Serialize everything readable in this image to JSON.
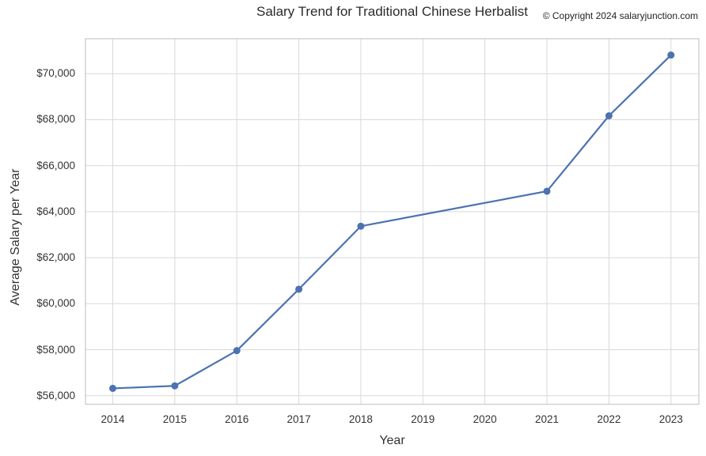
{
  "header": {
    "title": "Salary Trend for Traditional Chinese Herbalist",
    "copyright": "© Copyright 2024 salaryjunction.com"
  },
  "chart_data": {
    "type": "line",
    "title": "Salary Trend for Traditional Chinese Herbalist",
    "xlabel": "Year",
    "ylabel": "Average Salary per Year",
    "x": [
      2014,
      2015,
      2016,
      2017,
      2018,
      2021,
      2022,
      2023
    ],
    "y": [
      56320,
      56430,
      57960,
      60630,
      63370,
      64890,
      68170,
      70810
    ],
    "note": "No data markers at 2019 and 2020; the line runs straight from the 2018 point to the 2021 point.",
    "x_ticks": [
      "2014",
      "2015",
      "2016",
      "2017",
      "2018",
      "2019",
      "2020",
      "2021",
      "2022",
      "2023"
    ],
    "y_ticks": [
      {
        "value": 56000,
        "label": "$56,000"
      },
      {
        "value": 58000,
        "label": "$58,000"
      },
      {
        "value": 60000,
        "label": "$60,000"
      },
      {
        "value": 62000,
        "label": "$62,000"
      },
      {
        "value": 64000,
        "label": "$64,000"
      },
      {
        "value": 66000,
        "label": "$66,000"
      },
      {
        "value": 68000,
        "label": "$68,000"
      },
      {
        "value": 70000,
        "label": "$70,000"
      }
    ],
    "xlim": [
      2013.56,
      2023.45
    ],
    "ylim": [
      55630,
      71520
    ],
    "grid": true,
    "legend": false,
    "marker": "circle",
    "colors": {
      "line": "#4c72b0",
      "marker": "#4c72b0",
      "grid": "#d9d9d9",
      "frame": "#c9c9c9",
      "text": "#333333",
      "background": "#ffffff"
    }
  }
}
